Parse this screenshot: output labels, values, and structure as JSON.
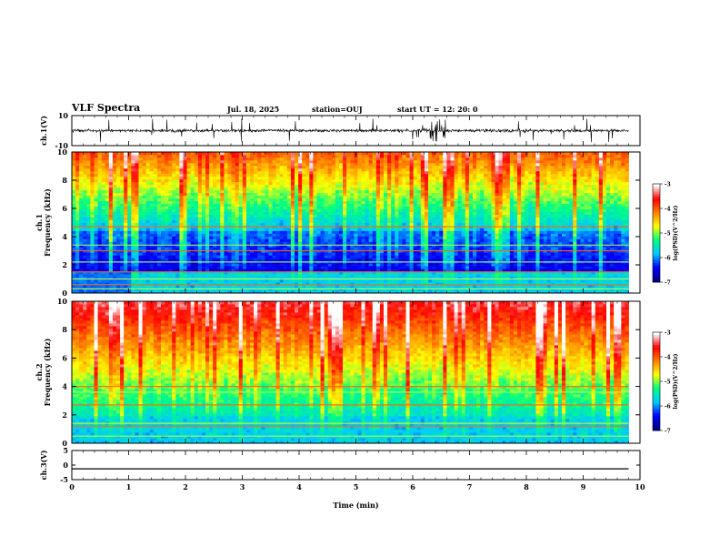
{
  "header": {
    "title": "VLF Spectra",
    "date": "Jul. 18, 2025",
    "station": "station=OUJ",
    "start": "start UT =  12: 20: 0"
  },
  "colormap": {
    "stops": [
      "#000080",
      "#0000ff",
      "#00c8ff",
      "#00ff80",
      "#ffff00",
      "#ff8000",
      "#ff0000",
      "#ffffff"
    ]
  },
  "chart_data": [
    {
      "type": "line",
      "ylabel": "ch.1(V)",
      "ylim": [
        -10,
        10
      ],
      "yticks": [
        10,
        -10
      ],
      "xlim": [
        0,
        10
      ],
      "description_values": "noisy voltage trace centered near 0 V with spikes around 6-6.5 min"
    },
    {
      "type": "heatmap",
      "ylabel_top": "ch.1",
      "ylabel": "Frequency (kHz)",
      "ylim": [
        0,
        10
      ],
      "yticks": [
        0,
        2,
        4,
        6,
        8,
        10
      ],
      "xlim": [
        0,
        10
      ],
      "colorbar": {
        "label": "log(PSD)(V^2/Hz)",
        "ticks": [
          -3,
          -4,
          -5,
          -6,
          -7
        ],
        "range": [
          -7,
          -3
        ]
      },
      "bands_khz": [
        0.3,
        0.6,
        1.0,
        1.5,
        2.2,
        3.0,
        3.4,
        4.7
      ]
    },
    {
      "type": "heatmap",
      "ylabel_top": "ch.2",
      "ylabel": "Frequency (kHz)",
      "ylim": [
        0,
        10
      ],
      "yticks": [
        0,
        2,
        4,
        6,
        8,
        10
      ],
      "xlim": [
        0,
        10
      ],
      "colorbar": {
        "label": "log(PSD)(V^2/Hz)",
        "ticks": [
          -3,
          -4,
          -5,
          -6,
          -7
        ],
        "range": [
          -7,
          -3
        ]
      },
      "bands_khz": [
        0.5,
        1.2,
        1.4,
        2.7,
        3.6,
        4.0
      ]
    },
    {
      "type": "line",
      "ylabel": "ch.3(V)",
      "ylim": [
        -5,
        5
      ],
      "yticks": [
        5,
        0,
        -5
      ],
      "xlim": [
        0,
        10
      ],
      "x": [
        0,
        9.8
      ],
      "y": [
        -1.3,
        -1.3
      ]
    }
  ],
  "xaxis": {
    "label": "Time (min)",
    "ticks": [
      0,
      1,
      2,
      3,
      4,
      5,
      6,
      7,
      8,
      9,
      10
    ],
    "data_end": 9.8
  }
}
